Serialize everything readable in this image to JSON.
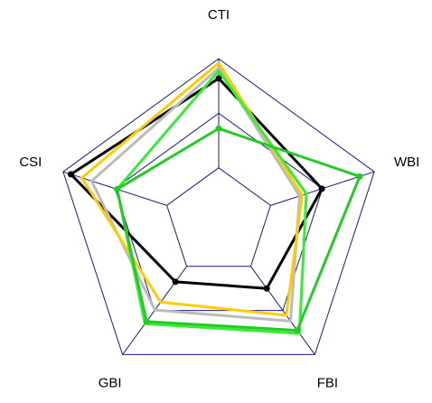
{
  "chart_data": {
    "type": "radar",
    "categories": [
      "CTI",
      "WBI",
      "FBI",
      "GBI",
      "CSI"
    ],
    "rlim": [
      0,
      3
    ],
    "rticks": [
      1,
      2,
      3
    ],
    "grid_color": "#1a1a8c",
    "series": [
      {
        "color": "#000000",
        "marker": true,
        "values": [
          2.64,
          1.99,
          1.5,
          1.35,
          2.85
        ]
      },
      {
        "color": "#bbbbbb",
        "marker": false,
        "values": [
          2.83,
          1.56,
          2.24,
          1.99,
          2.45
        ]
      },
      {
        "color": "#ffcc00",
        "marker": false,
        "values": [
          2.92,
          1.61,
          2.11,
          1.81,
          2.64
        ]
      },
      {
        "color": "#33ee33",
        "marker": false,
        "values": [
          2.78,
          1.69,
          2.52,
          2.3,
          1.96
        ]
      },
      {
        "color": "#22cc22",
        "marker": true,
        "values": [
          1.72,
          2.72,
          2.45,
          2.25,
          1.96
        ]
      }
    ]
  }
}
